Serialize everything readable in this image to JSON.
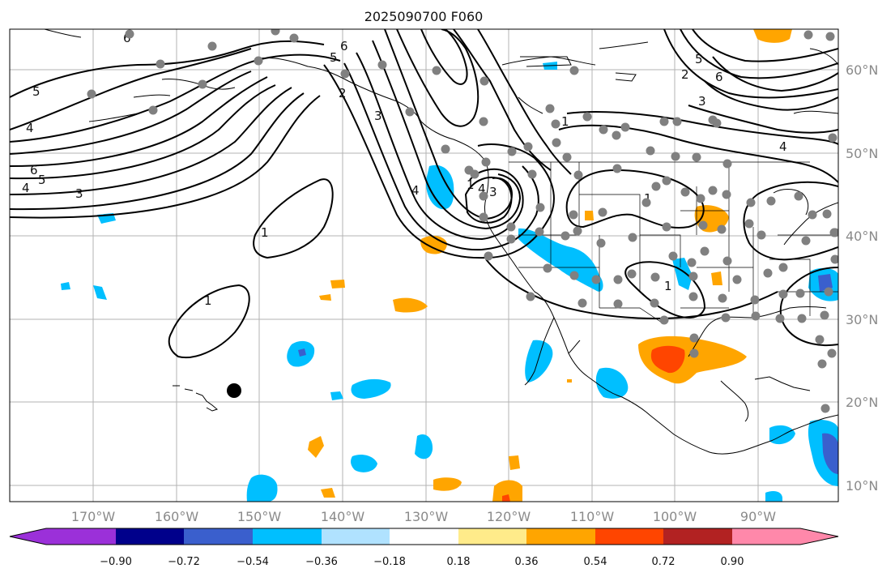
{
  "title": "2025090700 F060",
  "map": {
    "lon_labels": [
      "170°W",
      "160°W",
      "150°W",
      "140°W",
      "130°W",
      "120°W",
      "110°W",
      "100°W",
      "90°W"
    ],
    "lat_labels": [
      "60°N",
      "50°N",
      "40°N",
      "30°N",
      "20°N",
      "10°N"
    ],
    "contour_labels": [
      "5",
      "4",
      "6",
      "5",
      "4",
      "3",
      "1",
      "1",
      "2",
      "3",
      "4",
      "5",
      "6",
      "1",
      "1",
      "2",
      "3",
      "4",
      "6",
      "5",
      "4",
      "3",
      "1",
      "1",
      "6"
    ]
  },
  "colorbar": {
    "ticks": [
      "−0.90",
      "−0.72",
      "−0.54",
      "−0.36",
      "−0.18",
      "0.18",
      "0.36",
      "0.54",
      "0.72",
      "0.90"
    ],
    "colors": [
      "#9b30d9",
      "#00008b",
      "#3a5fcd",
      "#00bfff",
      "#b0e2ff",
      "#ffffff",
      "#ffeb8a",
      "#ffa500",
      "#ff4500",
      "#b22222",
      "#ff88aa"
    ]
  },
  "colors": {
    "neg_strong": "#3a5fcd",
    "neg": "#00bfff",
    "pos": "#ffa500",
    "pos_strong": "#ff4500",
    "station": "#808080"
  },
  "marker_icons": [
    "station-dot",
    "hawaii-marker"
  ]
}
